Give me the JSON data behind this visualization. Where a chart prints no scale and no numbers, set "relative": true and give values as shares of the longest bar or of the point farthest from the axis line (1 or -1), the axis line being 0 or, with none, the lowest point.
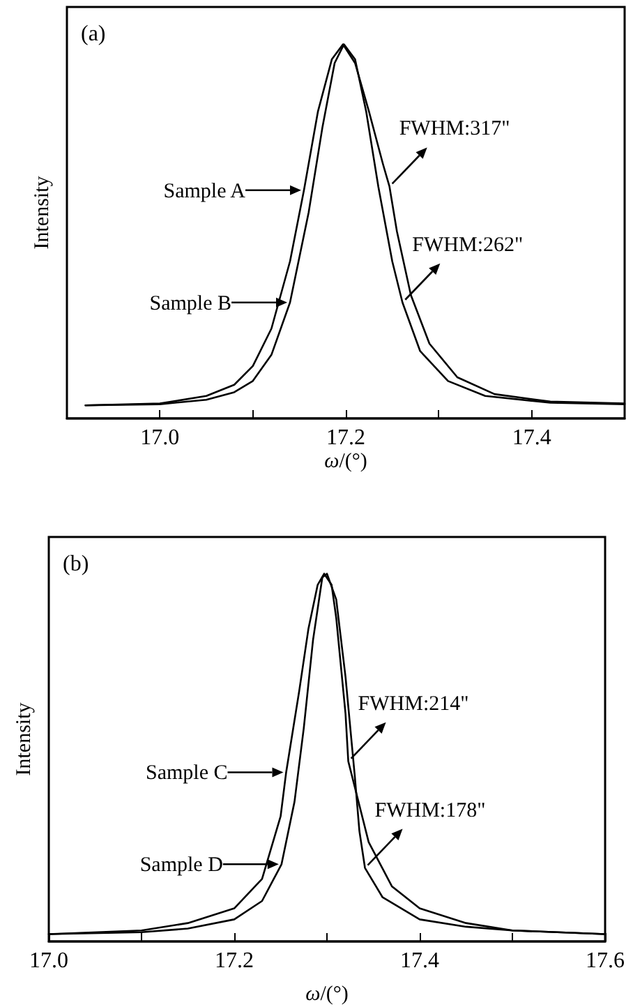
{
  "chart_data": [
    {
      "type": "line",
      "xlabel": "ω/(°)",
      "ylabel": "Intensity",
      "relative": true,
      "marker": "none",
      "line_style": "solid",
      "xlim": [
        16.9,
        17.5
      ],
      "xticks": [
        {
          "value": 17.0,
          "label": "17.0"
        },
        {
          "value": 17.1,
          "label": null
        },
        17.2,
        {
          "value": 17.3,
          "label": null
        },
        17.4
      ],
      "annotations": [
        "(a)",
        {
          "text": "Sample A",
          "x": 17.155,
          "y": 0.61
        },
        {
          "text": "Sample B",
          "x": 17.14,
          "y": 0.31
        },
        {
          "text": "FWHM:317\"",
          "x": 17.247,
          "y": 0.62
        },
        {
          "text": "FWHM:262\"",
          "x": 17.261,
          "y": 0.31
        }
      ],
      "series": [
        {
          "color": "#000000",
          "x": [
            16.92,
            17.0,
            17.05,
            17.08,
            17.1,
            17.12,
            17.14,
            17.155,
            17.17,
            17.185,
            17.197,
            17.21,
            17.225,
            17.24,
            17.247,
            17.255,
            17.27,
            17.29,
            17.32,
            17.36,
            17.42,
            17.5
          ],
          "values": [
            0.035,
            0.04,
            0.06,
            0.09,
            0.14,
            0.24,
            0.42,
            0.61,
            0.82,
            0.96,
            1.0,
            0.95,
            0.82,
            0.68,
            0.62,
            0.5,
            0.33,
            0.2,
            0.11,
            0.065,
            0.045,
            0.04
          ]
        },
        {
          "color": "#000000",
          "x": [
            16.92,
            17.0,
            17.05,
            17.08,
            17.1,
            17.12,
            17.14,
            17.16,
            17.175,
            17.188,
            17.198,
            17.21,
            17.222,
            17.235,
            17.25,
            17.261,
            17.28,
            17.31,
            17.35,
            17.42,
            17.5
          ],
          "values": [
            0.035,
            0.038,
            0.05,
            0.07,
            0.1,
            0.17,
            0.31,
            0.55,
            0.78,
            0.95,
            1.0,
            0.96,
            0.82,
            0.62,
            0.42,
            0.31,
            0.18,
            0.1,
            0.06,
            0.042,
            0.038
          ]
        }
      ]
    },
    {
      "type": "line",
      "xlabel": "ω/(°)",
      "ylabel": "Intensity",
      "relative": true,
      "marker": "none",
      "line_style": "solid",
      "xlim": [
        17.0,
        17.6
      ],
      "xticks": [
        {
          "value": 17.0,
          "label": "17.0"
        },
        {
          "value": 17.1,
          "label": null
        },
        17.2,
        {
          "value": 17.3,
          "label": null
        },
        17.4,
        {
          "value": 17.5,
          "label": null
        },
        17.6
      ],
      "annotations": [
        "(b)",
        {
          "text": "Sample C",
          "x": 17.256,
          "y": 0.46
        },
        {
          "text": "Sample D",
          "x": 17.251,
          "y": 0.21
        },
        {
          "text": "FWHM:214\"",
          "x": 17.323,
          "y": 0.49
        },
        {
          "text": "FWHM:178\"",
          "x": 17.341,
          "y": 0.2
        }
      ],
      "series": [
        {
          "color": "#000000",
          "x": [
            17.0,
            17.1,
            17.15,
            17.2,
            17.23,
            17.25,
            17.256,
            17.27,
            17.28,
            17.29,
            17.297,
            17.305,
            17.31,
            17.32,
            17.323,
            17.33,
            17.345,
            17.37,
            17.4,
            17.45,
            17.5,
            17.6
          ],
          "values": [
            0.02,
            0.03,
            0.05,
            0.09,
            0.17,
            0.34,
            0.46,
            0.68,
            0.85,
            0.97,
            1.0,
            0.97,
            0.88,
            0.62,
            0.49,
            0.42,
            0.27,
            0.15,
            0.09,
            0.05,
            0.03,
            0.02
          ]
        },
        {
          "color": "#000000",
          "x": [
            17.0,
            17.1,
            17.15,
            17.2,
            17.23,
            17.251,
            17.265,
            17.275,
            17.285,
            17.295,
            17.3,
            17.31,
            17.32,
            17.33,
            17.335,
            17.341,
            17.36,
            17.4,
            17.45,
            17.5,
            17.6
          ],
          "values": [
            0.02,
            0.025,
            0.035,
            0.06,
            0.11,
            0.21,
            0.38,
            0.58,
            0.82,
            0.99,
            1.0,
            0.93,
            0.72,
            0.45,
            0.3,
            0.2,
            0.12,
            0.06,
            0.04,
            0.03,
            0.02
          ]
        }
      ]
    }
  ]
}
